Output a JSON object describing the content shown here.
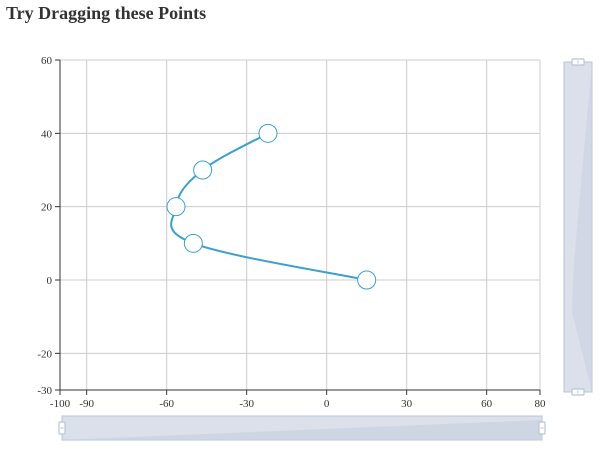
{
  "page": {
    "title": "Try Dragging these Points"
  },
  "colors": {
    "line": "#3aa0d0",
    "point_fill": "#ffffff",
    "point_stroke": "#3aa0d0",
    "grid": "#cccccc",
    "axis": "#333333",
    "zoom_fill": "#d7dde8",
    "zoom_stroke": "#b8c4d6",
    "handle": "#b8c4d6"
  },
  "chart_data": {
    "type": "line",
    "title": "",
    "xlabel": "",
    "ylabel": "",
    "xlim": [
      -100,
      80
    ],
    "ylim": [
      -30,
      60
    ],
    "x_ticks": [
      -100,
      -90,
      -60,
      -30,
      0,
      30,
      60,
      80
    ],
    "y_ticks": [
      -30,
      -20,
      0,
      20,
      40,
      60
    ],
    "x_tick_labels": [
      "-100",
      "-90",
      "-60",
      "-30",
      "0",
      "30",
      "60",
      "80"
    ],
    "y_tick_labels": [
      "-30",
      "-20",
      "0",
      "20",
      "40",
      "60"
    ],
    "grid": true,
    "smooth": true,
    "points": [
      {
        "x": 15,
        "y": 0
      },
      {
        "x": -50,
        "y": 10
      },
      {
        "x": -56.5,
        "y": 20
      },
      {
        "x": -46.5,
        "y": 30
      },
      {
        "x": -22,
        "y": 40
      }
    ],
    "x_zoom": {
      "start": 0,
      "end": 100
    },
    "y_zoom": {
      "start": 0,
      "end": 100
    }
  }
}
